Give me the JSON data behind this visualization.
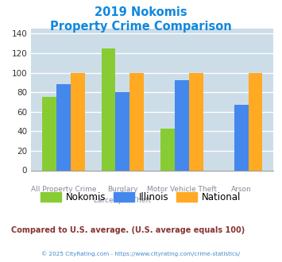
{
  "title_line1": "2019 Nokomis",
  "title_line2": "Property Crime Comparison",
  "cat_labels_top": [
    "",
    "Burglary",
    "Motor Vehicle Theft",
    ""
  ],
  "cat_labels_bottom": [
    "All Property Crime",
    "Larceny & Theft",
    "",
    "Arson"
  ],
  "nokomis": [
    75,
    125,
    43,
    0
  ],
  "illinois": [
    88,
    80,
    92,
    67
  ],
  "national": [
    100,
    100,
    100,
    100
  ],
  "nokomis_color": "#88cc33",
  "illinois_color": "#4488ee",
  "national_color": "#ffaa22",
  "ylim": [
    0,
    145
  ],
  "yticks": [
    0,
    20,
    40,
    60,
    80,
    100,
    120,
    140
  ],
  "bg_color": "#cddde8",
  "title_color": "#1188dd",
  "footer_note": "Compared to U.S. average. (U.S. average equals 100)",
  "footer_note_color": "#883333",
  "copyright_text": "© 2025 CityRating.com - https://www.cityrating.com/crime-statistics/",
  "copyright_color": "#4488cc",
  "legend_labels": [
    "Nokomis",
    "Illinois",
    "National"
  ],
  "xlabel_color": "#888899"
}
